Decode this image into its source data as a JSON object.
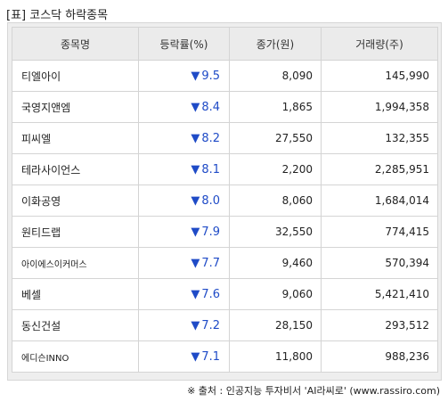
{
  "title": "[표] 코스닥 하락종목",
  "headers": {
    "name": "종목명",
    "rate": "등락률(%)",
    "price": "종가(원)",
    "volume": "거래량(주)"
  },
  "down_arrow": "▼",
  "rows": [
    {
      "name": "티엘아이",
      "rate": "9.5",
      "price": "8,090",
      "volume": "145,990"
    },
    {
      "name": "국영지앤엠",
      "rate": "8.4",
      "price": "1,865",
      "volume": "1,994,358"
    },
    {
      "name": "피씨엘",
      "rate": "8.2",
      "price": "27,550",
      "volume": "132,355"
    },
    {
      "name": "테라사이언스",
      "rate": "8.1",
      "price": "2,200",
      "volume": "2,285,951"
    },
    {
      "name": "이화공영",
      "rate": "8.0",
      "price": "8,060",
      "volume": "1,684,014"
    },
    {
      "name": "원티드랩",
      "rate": "7.9",
      "price": "32,550",
      "volume": "774,415"
    },
    {
      "name": "아이에스이커머스",
      "rate": "7.7",
      "price": "9,460",
      "volume": "570,394"
    },
    {
      "name": "베셀",
      "rate": "7.6",
      "price": "9,060",
      "volume": "5,421,410"
    },
    {
      "name": "동신건설",
      "rate": "7.2",
      "price": "28,150",
      "volume": "293,512"
    },
    {
      "name": "에디슨INNO",
      "rate": "7.1",
      "price": "11,800",
      "volume": "988,236"
    }
  ],
  "source": "※ 출처 : 인공지능 투자비서 'AI라씨로' (www.rassiro.com)",
  "colors": {
    "down": "#1f4bc7",
    "header_bg": "#ebebeb",
    "frame_bg": "#eeeeee"
  }
}
